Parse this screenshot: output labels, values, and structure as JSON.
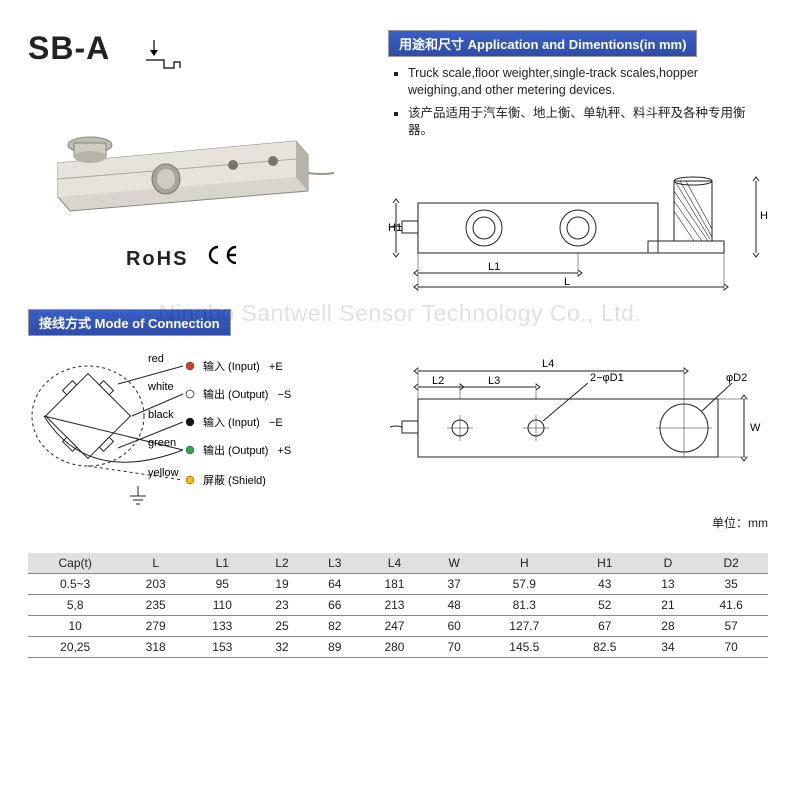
{
  "product_title": "SB-A",
  "cert": {
    "rohs": "RoHS",
    "ce": "CE"
  },
  "app_header": "用途和尺寸 Application and Dimentions(in mm)",
  "app_list": [
    "Truck scale,floor weighter,single-track scales,hopper weighing,and other metering devices.",
    "该产品适用于汽车衡、地上衡、单轨秤、料斗秤及各种专用衡器。"
  ],
  "conn_header": "接线方式 Mode of Connection",
  "wires": [
    {
      "color_name": "red",
      "color": "#d83a2b",
      "label": "输入 (Input)",
      "sig": "+E"
    },
    {
      "color_name": "white",
      "color": "#ffffff",
      "label": "输出 (Output)",
      "sig": "−S"
    },
    {
      "color_name": "black",
      "color": "#111111",
      "label": "输入 (Input)",
      "sig": "−E"
    },
    {
      "color_name": "green",
      "color": "#2aa84a",
      "label": "输出 (Output)",
      "sig": "+S"
    },
    {
      "color_name": "yellow",
      "color": "#f2c200",
      "label": "屏蔽 (Shield)",
      "sig": ""
    }
  ],
  "side_dims": {
    "H": "H",
    "H1": "H1",
    "L": "L",
    "L1": "L1"
  },
  "top_dims": {
    "L2": "L2",
    "L3": "L3",
    "L4": "L4",
    "W": "W",
    "D1": "2−φD1",
    "D2": "φD2"
  },
  "table": {
    "unit": "单位：mm",
    "columns": [
      "Cap(t)",
      "L",
      "L1",
      "L2",
      "L3",
      "L4",
      "W",
      "H",
      "H1",
      "D",
      "D2"
    ],
    "rows": [
      [
        "0.5~3",
        "203",
        "95",
        "19",
        "64",
        "181",
        "37",
        "57.9",
        "43",
        "13",
        "35"
      ],
      [
        "5,8",
        "235",
        "110",
        "23",
        "66",
        "213",
        "48",
        "81.3",
        "52",
        "21",
        "41.6"
      ],
      [
        "10",
        "279",
        "133",
        "25",
        "82",
        "247",
        "60",
        "127.7",
        "67",
        "28",
        "57"
      ],
      [
        "20,25",
        "318",
        "153",
        "32",
        "89",
        "280",
        "70",
        "145.5",
        "82.5",
        "34",
        "70"
      ]
    ]
  },
  "watermark": "Ningbo Santwell Sensor Technology Co., Ltd.",
  "colors": {
    "bluebar": "#3a5fc7",
    "steel_light": "#d8d5cf",
    "steel_mid": "#b7b3aa",
    "steel_dark": "#8a857b",
    "line": "#222222"
  }
}
